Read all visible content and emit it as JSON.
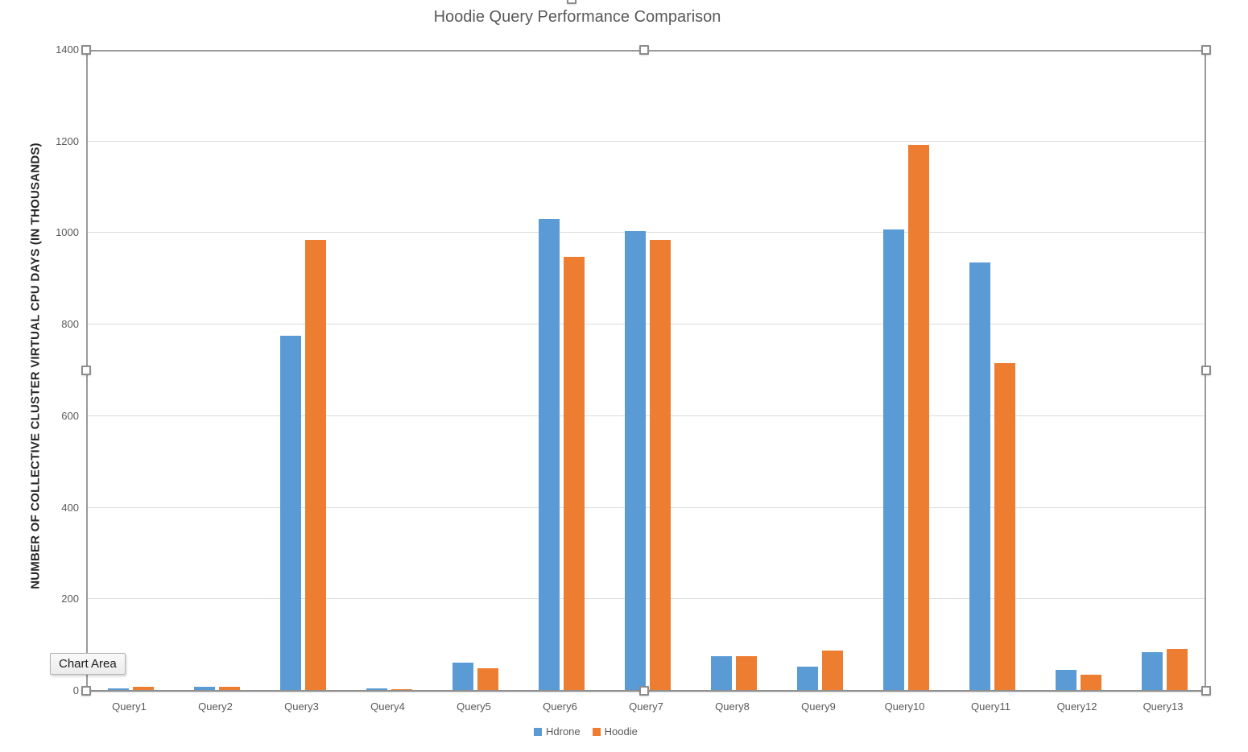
{
  "tooltip": {
    "label": "Chart Area"
  },
  "colors": {
    "hdrone_blue": "#5B9BD5",
    "hoodie_orange": "#ED7D31",
    "gridline": "#dcdcdc",
    "axis_text": "#595959",
    "title_text": "#595959",
    "y_axis_title_text": "#262626"
  },
  "chart_data": {
    "type": "bar",
    "title": "Hoodie Query Performance Comparison",
    "xlabel": "",
    "ylabel": "NUMBER OF COLLECTIVE CLUSTER VIRTUAL CPU DAYS (IN THOUSANDS)",
    "ylim": [
      0,
      1400
    ],
    "yticks": [
      0,
      200,
      400,
      600,
      800,
      1000,
      1200,
      1400
    ],
    "grid": true,
    "legend_position": "bottom",
    "categories": [
      "Query1",
      "Query2",
      "Query3",
      "Query4",
      "Query5",
      "Query6",
      "Query7",
      "Query8",
      "Query9",
      "Query10",
      "Query11",
      "Query12",
      "Query13"
    ],
    "series": [
      {
        "name": "Hdrone",
        "color": "#5B9BD5",
        "values": [
          5,
          8,
          775,
          5,
          62,
          1030,
          1005,
          75,
          52,
          1008,
          935,
          45,
          84
        ]
      },
      {
        "name": "Hoodie",
        "color": "#ED7D31",
        "values": [
          8,
          8,
          985,
          4,
          50,
          948,
          985,
          76,
          88,
          1193,
          715,
          36,
          92
        ]
      }
    ]
  }
}
